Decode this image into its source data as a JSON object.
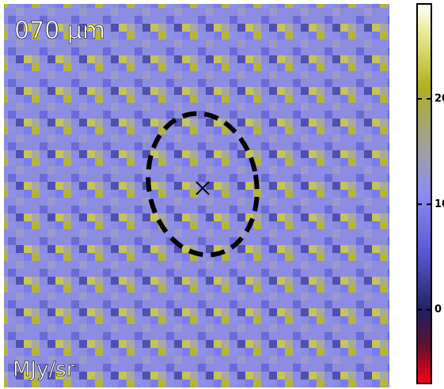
{
  "chart_data": {
    "type": "heatmap",
    "title": "070 μm",
    "colorbar_label": "MJy/sr",
    "clim": [
      -7,
      29
    ],
    "cticks": [
      0,
      10,
      20
    ]
  }
}
